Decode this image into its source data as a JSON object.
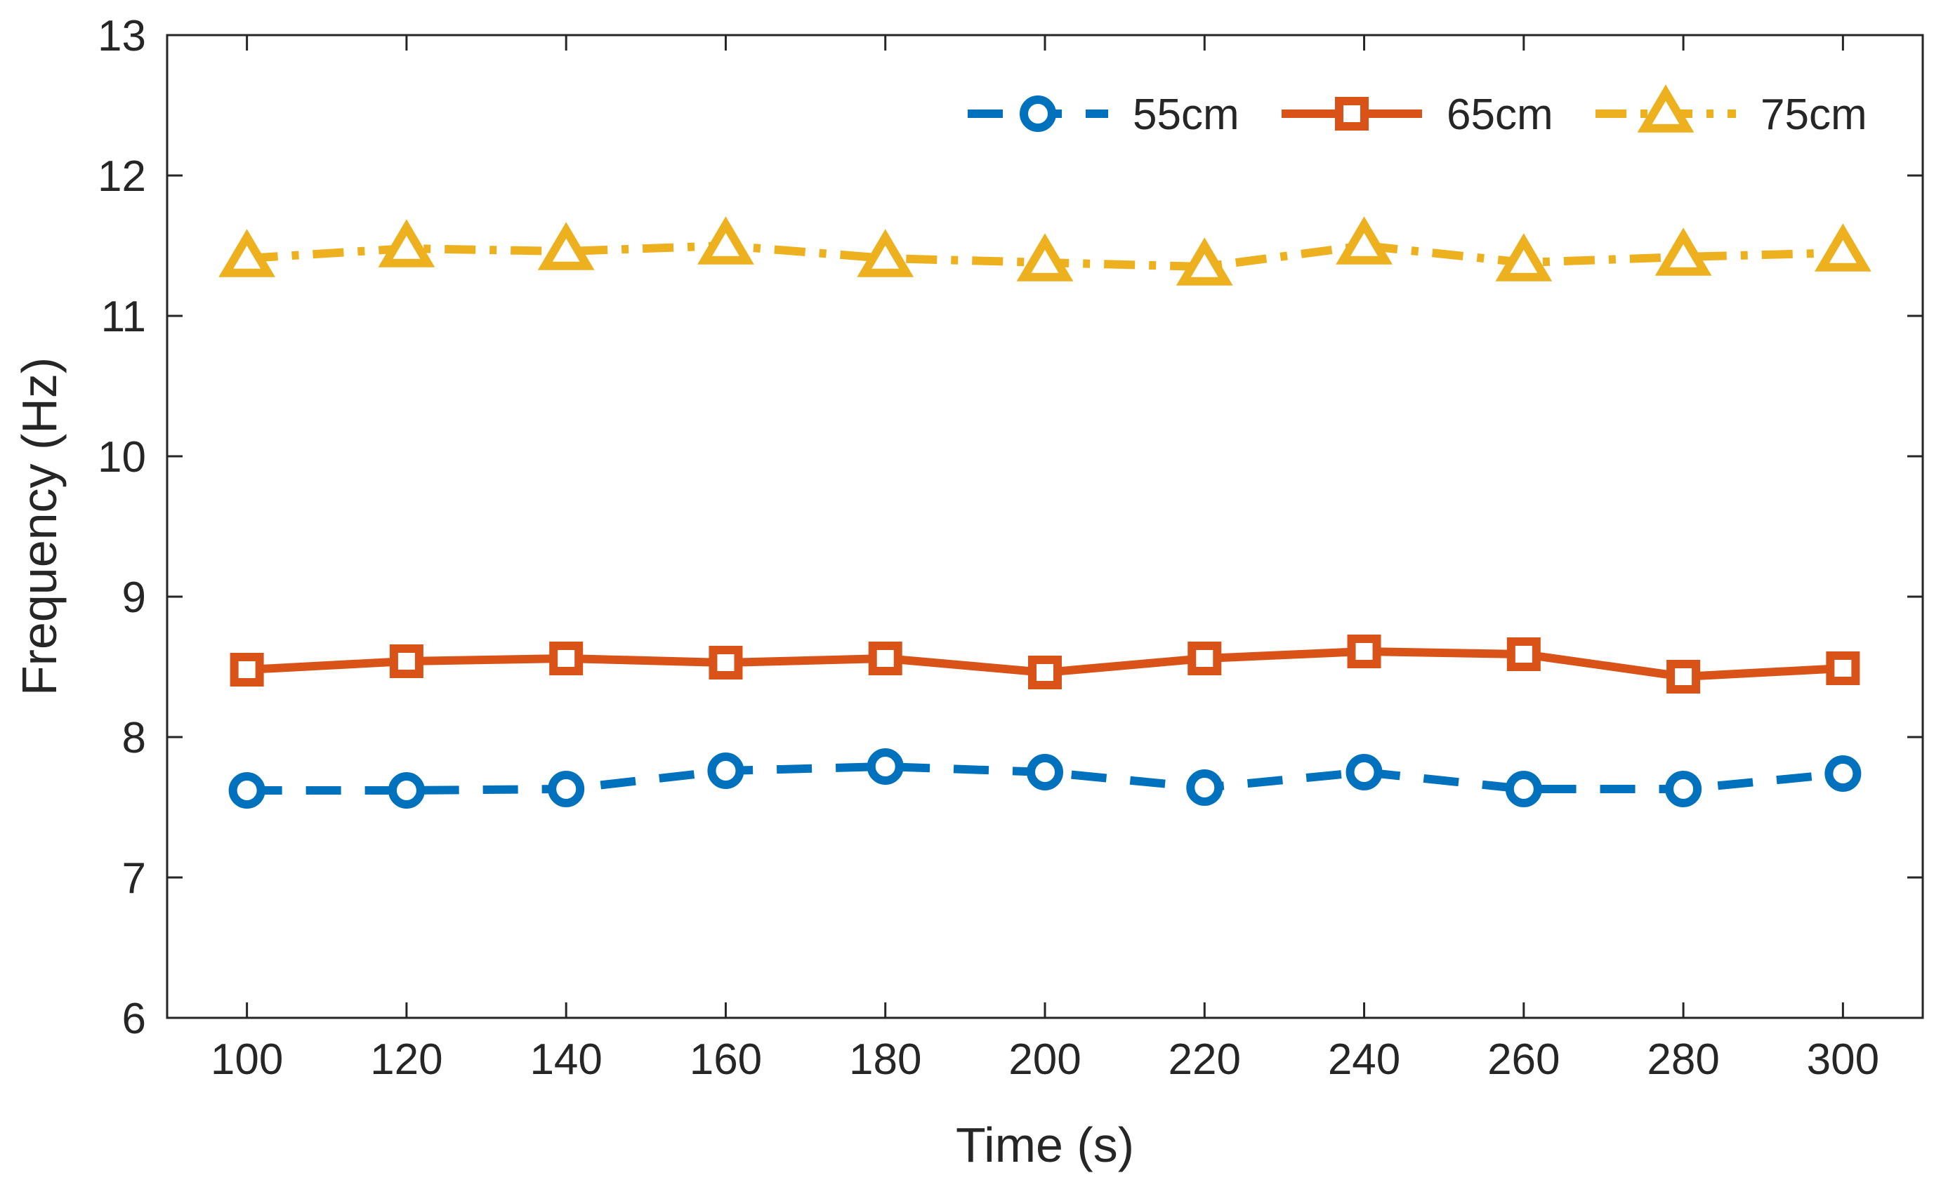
{
  "chart_data": {
    "type": "line",
    "title": "",
    "xlabel": "Time (s)",
    "ylabel": "Frequency (Hz)",
    "x": [
      100,
      120,
      140,
      160,
      180,
      200,
      220,
      240,
      260,
      280,
      300
    ],
    "xlim": [
      90,
      310
    ],
    "ylim": [
      6,
      13
    ],
    "xticks": [
      "100",
      "120",
      "140",
      "160",
      "180",
      "200",
      "220",
      "240",
      "260",
      "280",
      "300"
    ],
    "yticks": [
      "6",
      "7",
      "8",
      "9",
      "10",
      "11",
      "12",
      "13"
    ],
    "grid": false,
    "legend_position": "top-right",
    "series": [
      {
        "name": "55cm",
        "color": "#0072BD",
        "line_style": "dashed",
        "marker": "circle",
        "values": [
          7.62,
          7.62,
          7.63,
          7.76,
          7.79,
          7.75,
          7.64,
          7.75,
          7.63,
          7.63,
          7.74
        ]
      },
      {
        "name": "65cm",
        "color": "#D95319",
        "line_style": "solid",
        "marker": "square",
        "values": [
          8.48,
          8.54,
          8.56,
          8.53,
          8.56,
          8.46,
          8.56,
          8.61,
          8.59,
          8.43,
          8.49
        ]
      },
      {
        "name": "75cm",
        "color": "#EDB120",
        "line_style": "dash-dot",
        "marker": "triangle",
        "values": [
          11.41,
          11.48,
          11.46,
          11.5,
          11.41,
          11.38,
          11.35,
          11.5,
          11.38,
          11.42,
          11.45
        ]
      }
    ]
  }
}
